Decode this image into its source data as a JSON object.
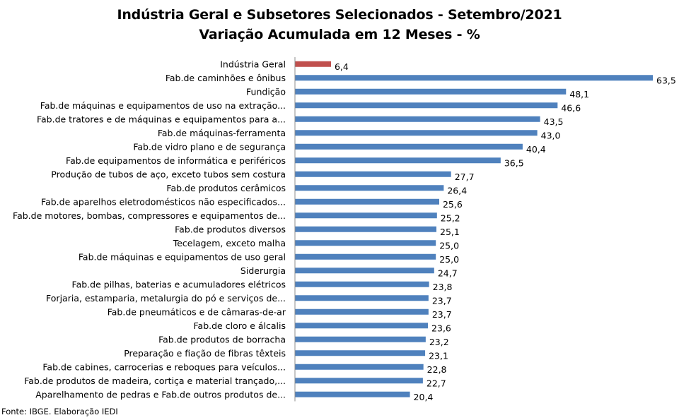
{
  "title_line1": "Indústria Geral e Subsetores Selecionados - Setembro/2021",
  "title_line2": "Variação Acumulada em 12 Meses - %",
  "source": "Fonte: IBGE. Elaboração IEDI",
  "chart_data": {
    "type": "bar",
    "orientation": "horizontal",
    "title": "Indústria Geral e Subsetores Selecionados - Setembro/2021",
    "subtitle": "Variação Acumulada em 12 Meses - %",
    "xlabel": "",
    "ylabel": "",
    "xlim": [
      0,
      63.5
    ],
    "grid": false,
    "decimal_separator": ",",
    "colors": {
      "highlight": "#C0504D",
      "default": "#4F81BD"
    },
    "categories": [
      "Indústria Geral",
      "Fab.de caminhões e ônibus",
      "Fundição",
      "Fab.de máquinas e equipamentos de uso na extração...",
      "Fab.de tratores e de máquinas e equipamentos para a...",
      "Fab.de máquinas-ferramenta",
      "Fab.de vidro plano e de segurança",
      "Fab.de equipamentos de informática e periféricos",
      "Produção de tubos de aço, exceto tubos sem costura",
      "Fab.de produtos cerâmicos",
      "Fab.de aparelhos eletrodomésticos não especificados...",
      "Fab.de motores, bombas, compressores e equipamentos de...",
      "Fab.de produtos diversos",
      "Tecelagem, exceto malha",
      "Fab.de máquinas e equipamentos de uso geral",
      "Siderurgia",
      "Fab.de pilhas, baterias e acumuladores elétricos",
      "Forjaria, estamparia, metalurgia do pó e serviços de...",
      "Fab.de pneumáticos e de câmaras-de-ar",
      "Fab.de cloro e álcalis",
      "Fab.de produtos de borracha",
      "Preparação e fiação de fibras têxteis",
      "Fab.de cabines, carrocerias e reboques para veículos...",
      "Fab.de produtos de madeira, cortiça e material trançado,...",
      "Aparelhamento de pedras e Fab.de outros produtos de..."
    ],
    "values": [
      6.4,
      63.5,
      48.1,
      46.6,
      43.5,
      43.0,
      40.4,
      36.5,
      27.7,
      26.4,
      25.6,
      25.2,
      25.1,
      25.0,
      25.0,
      24.7,
      23.8,
      23.7,
      23.7,
      23.6,
      23.2,
      23.1,
      22.8,
      22.7,
      20.4
    ],
    "highlight_index": 0
  }
}
